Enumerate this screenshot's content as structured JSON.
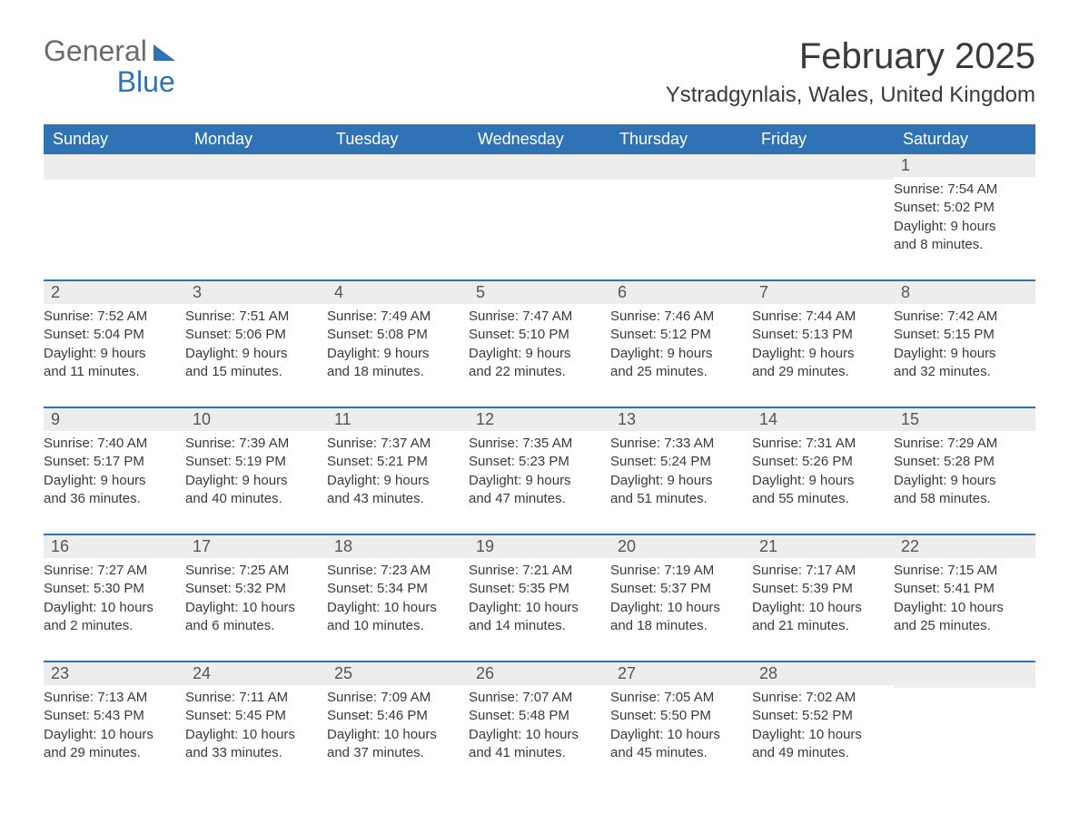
{
  "logo": {
    "word1": "General",
    "word2": "Blue"
  },
  "header": {
    "month_title": "February 2025",
    "location": "Ystradgynlais, Wales, United Kingdom"
  },
  "colors": {
    "primary": "#2f73b6",
    "header_text": "#ffffff",
    "daynum_bg": "#ededed",
    "text": "#3a3a3a"
  },
  "day_names": [
    "Sunday",
    "Monday",
    "Tuesday",
    "Wednesday",
    "Thursday",
    "Friday",
    "Saturday"
  ],
  "weeks": [
    [
      null,
      null,
      null,
      null,
      null,
      null,
      {
        "n": "1",
        "sunrise": "Sunrise: 7:54 AM",
        "sunset": "Sunset: 5:02 PM",
        "dl1": "Daylight: 9 hours",
        "dl2": "and 8 minutes."
      }
    ],
    [
      {
        "n": "2",
        "sunrise": "Sunrise: 7:52 AM",
        "sunset": "Sunset: 5:04 PM",
        "dl1": "Daylight: 9 hours",
        "dl2": "and 11 minutes."
      },
      {
        "n": "3",
        "sunrise": "Sunrise: 7:51 AM",
        "sunset": "Sunset: 5:06 PM",
        "dl1": "Daylight: 9 hours",
        "dl2": "and 15 minutes."
      },
      {
        "n": "4",
        "sunrise": "Sunrise: 7:49 AM",
        "sunset": "Sunset: 5:08 PM",
        "dl1": "Daylight: 9 hours",
        "dl2": "and 18 minutes."
      },
      {
        "n": "5",
        "sunrise": "Sunrise: 7:47 AM",
        "sunset": "Sunset: 5:10 PM",
        "dl1": "Daylight: 9 hours",
        "dl2": "and 22 minutes."
      },
      {
        "n": "6",
        "sunrise": "Sunrise: 7:46 AM",
        "sunset": "Sunset: 5:12 PM",
        "dl1": "Daylight: 9 hours",
        "dl2": "and 25 minutes."
      },
      {
        "n": "7",
        "sunrise": "Sunrise: 7:44 AM",
        "sunset": "Sunset: 5:13 PM",
        "dl1": "Daylight: 9 hours",
        "dl2": "and 29 minutes."
      },
      {
        "n": "8",
        "sunrise": "Sunrise: 7:42 AM",
        "sunset": "Sunset: 5:15 PM",
        "dl1": "Daylight: 9 hours",
        "dl2": "and 32 minutes."
      }
    ],
    [
      {
        "n": "9",
        "sunrise": "Sunrise: 7:40 AM",
        "sunset": "Sunset: 5:17 PM",
        "dl1": "Daylight: 9 hours",
        "dl2": "and 36 minutes."
      },
      {
        "n": "10",
        "sunrise": "Sunrise: 7:39 AM",
        "sunset": "Sunset: 5:19 PM",
        "dl1": "Daylight: 9 hours",
        "dl2": "and 40 minutes."
      },
      {
        "n": "11",
        "sunrise": "Sunrise: 7:37 AM",
        "sunset": "Sunset: 5:21 PM",
        "dl1": "Daylight: 9 hours",
        "dl2": "and 43 minutes."
      },
      {
        "n": "12",
        "sunrise": "Sunrise: 7:35 AM",
        "sunset": "Sunset: 5:23 PM",
        "dl1": "Daylight: 9 hours",
        "dl2": "and 47 minutes."
      },
      {
        "n": "13",
        "sunrise": "Sunrise: 7:33 AM",
        "sunset": "Sunset: 5:24 PM",
        "dl1": "Daylight: 9 hours",
        "dl2": "and 51 minutes."
      },
      {
        "n": "14",
        "sunrise": "Sunrise: 7:31 AM",
        "sunset": "Sunset: 5:26 PM",
        "dl1": "Daylight: 9 hours",
        "dl2": "and 55 minutes."
      },
      {
        "n": "15",
        "sunrise": "Sunrise: 7:29 AM",
        "sunset": "Sunset: 5:28 PM",
        "dl1": "Daylight: 9 hours",
        "dl2": "and 58 minutes."
      }
    ],
    [
      {
        "n": "16",
        "sunrise": "Sunrise: 7:27 AM",
        "sunset": "Sunset: 5:30 PM",
        "dl1": "Daylight: 10 hours",
        "dl2": "and 2 minutes."
      },
      {
        "n": "17",
        "sunrise": "Sunrise: 7:25 AM",
        "sunset": "Sunset: 5:32 PM",
        "dl1": "Daylight: 10 hours",
        "dl2": "and 6 minutes."
      },
      {
        "n": "18",
        "sunrise": "Sunrise: 7:23 AM",
        "sunset": "Sunset: 5:34 PM",
        "dl1": "Daylight: 10 hours",
        "dl2": "and 10 minutes."
      },
      {
        "n": "19",
        "sunrise": "Sunrise: 7:21 AM",
        "sunset": "Sunset: 5:35 PM",
        "dl1": "Daylight: 10 hours",
        "dl2": "and 14 minutes."
      },
      {
        "n": "20",
        "sunrise": "Sunrise: 7:19 AM",
        "sunset": "Sunset: 5:37 PM",
        "dl1": "Daylight: 10 hours",
        "dl2": "and 18 minutes."
      },
      {
        "n": "21",
        "sunrise": "Sunrise: 7:17 AM",
        "sunset": "Sunset: 5:39 PM",
        "dl1": "Daylight: 10 hours",
        "dl2": "and 21 minutes."
      },
      {
        "n": "22",
        "sunrise": "Sunrise: 7:15 AM",
        "sunset": "Sunset: 5:41 PM",
        "dl1": "Daylight: 10 hours",
        "dl2": "and 25 minutes."
      }
    ],
    [
      {
        "n": "23",
        "sunrise": "Sunrise: 7:13 AM",
        "sunset": "Sunset: 5:43 PM",
        "dl1": "Daylight: 10 hours",
        "dl2": "and 29 minutes."
      },
      {
        "n": "24",
        "sunrise": "Sunrise: 7:11 AM",
        "sunset": "Sunset: 5:45 PM",
        "dl1": "Daylight: 10 hours",
        "dl2": "and 33 minutes."
      },
      {
        "n": "25",
        "sunrise": "Sunrise: 7:09 AM",
        "sunset": "Sunset: 5:46 PM",
        "dl1": "Daylight: 10 hours",
        "dl2": "and 37 minutes."
      },
      {
        "n": "26",
        "sunrise": "Sunrise: 7:07 AM",
        "sunset": "Sunset: 5:48 PM",
        "dl1": "Daylight: 10 hours",
        "dl2": "and 41 minutes."
      },
      {
        "n": "27",
        "sunrise": "Sunrise: 7:05 AM",
        "sunset": "Sunset: 5:50 PM",
        "dl1": "Daylight: 10 hours",
        "dl2": "and 45 minutes."
      },
      {
        "n": "28",
        "sunrise": "Sunrise: 7:02 AM",
        "sunset": "Sunset: 5:52 PM",
        "dl1": "Daylight: 10 hours",
        "dl2": "and 49 minutes."
      },
      null
    ]
  ]
}
